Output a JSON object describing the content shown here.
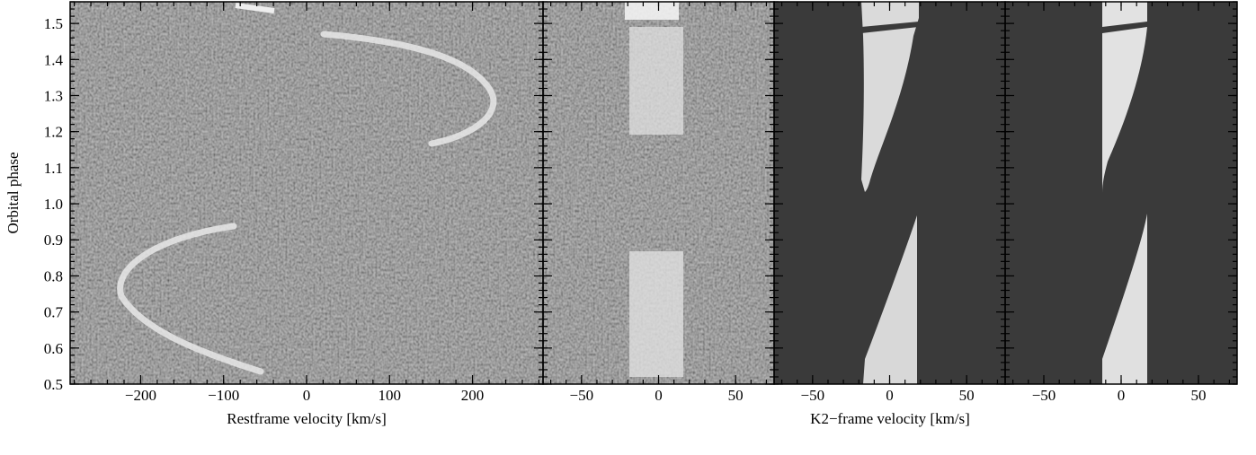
{
  "figure": {
    "ylabel": "Orbital phase",
    "xlabel_left": "Restframe velocity [km/s]",
    "xlabel_right": "K2−frame velocity [km/s]"
  },
  "chart_data": [
    {
      "type": "heatmap",
      "panel": "observed-restframe",
      "xlabel": "Restframe velocity [km/s]",
      "ylabel": "Orbital phase",
      "xlim": [
        -285,
        285
      ],
      "ylim": [
        0.5,
        1.56
      ],
      "xticks": [
        -200,
        -100,
        0,
        100,
        200
      ],
      "yticks": [
        0.5,
        0.6,
        0.7,
        0.8,
        0.9,
        1.0,
        1.1,
        1.2,
        1.3,
        1.4,
        1.5
      ],
      "trail": {
        "description": "bright S-wave emission trail",
        "phase": [
          0.53,
          0.6,
          0.7,
          0.75,
          0.8,
          0.9,
          0.95
        ],
        "velocity": [
          -40,
          -110,
          -190,
          -215,
          -200,
          -90,
          -20
        ],
        "phase_upper": [
          1.17,
          1.22,
          1.25,
          1.3,
          1.4,
          1.47,
          1.55
        ],
        "velocity_upper": [
          200,
          220,
          230,
          210,
          120,
          20,
          -60
        ]
      },
      "colors": {
        "background": "#7a7a7a",
        "trail": "#e6e6e6"
      }
    },
    {
      "type": "heatmap",
      "panel": "observed-k2frame",
      "xlim": [
        -75,
        75
      ],
      "ylim": [
        0.5,
        1.56
      ],
      "xticks": [
        -50,
        0,
        50
      ],
      "band": {
        "phases_bright": [
          [
            0.52,
            0.93
          ],
          [
            1.2,
            1.56
          ]
        ],
        "half_width_kms": 15
      },
      "colors": {
        "background": "#7a7a7a",
        "band": "#dedede"
      }
    },
    {
      "type": "heatmap",
      "panel": "model-1",
      "xlim": [
        -75,
        75
      ],
      "ylim": [
        0.5,
        1.56
      ],
      "xticks": [
        -50,
        0,
        50
      ],
      "colors": {
        "background": "#3a3a3a",
        "band": "#d9d9d9"
      }
    },
    {
      "type": "heatmap",
      "panel": "model-2",
      "xlim": [
        -75,
        75
      ],
      "ylim": [
        0.5,
        1.56
      ],
      "xticks": [
        -50,
        0,
        50
      ],
      "colors": {
        "background": "#3a3a3a",
        "band": "#e0e0e0"
      }
    }
  ]
}
